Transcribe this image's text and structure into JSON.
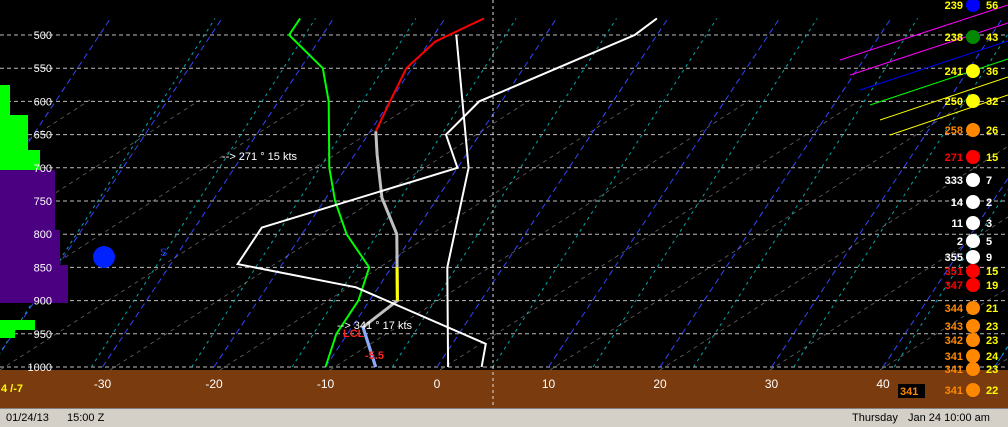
{
  "status": {
    "date": "01/24/13",
    "time": "15:00 Z",
    "valid": "Thursday",
    "valid_time": "Jan 24 10:00 am"
  },
  "left_label": "4 /-7",
  "storm_marker_label": "S",
  "bottom_right_box": "341",
  "annotations": {
    "wind_upper": "--> 271 ° 15 kts",
    "wind_lower": "--> 341 ° 17 kts",
    "lcl": "LCL",
    "sfc_value": "-5.5"
  },
  "colors": {
    "temperature": "#ff0000",
    "dewpoint": "#00ff00",
    "parcel": "#c0c0c0",
    "isobar": "#888888",
    "isotherm": "#3344ff",
    "dry_adiabat": "#aaaaaa",
    "mixing_ratio": "#00aaaa",
    "ground": "#7a3b0e",
    "status_bg": "#d4d0c8"
  },
  "chart_data": {
    "type": "line",
    "title": "",
    "xlabel": "",
    "ylabel": "",
    "x_ticks": [
      -30,
      -20,
      -10,
      0,
      10,
      20,
      30,
      40
    ],
    "y_ticks": [
      500,
      550,
      600,
      650,
      700,
      750,
      800,
      850,
      900,
      950,
      1000
    ],
    "xlim": [
      -39,
      50
    ],
    "ylim": [
      1000,
      475
    ],
    "series": [
      {
        "name": "",
        "color": "#ff0000",
        "points": [
          [
            -16.5,
            475
          ],
          [
            -19.5,
            510
          ],
          [
            -20.5,
            550
          ],
          [
            -20,
            600
          ],
          [
            -19.5,
            645
          ]
        ]
      },
      {
        "name": "",
        "color": "#c0c0c0",
        "points": [
          [
            -19.5,
            645
          ],
          [
            -18,
            680
          ],
          [
            -15,
            745
          ],
          [
            -11.5,
            800
          ],
          [
            -9.5,
            850
          ],
          [
            -7.5,
            900
          ],
          [
            -9,
            940
          ],
          [
            -5.5,
            1000
          ]
        ]
      },
      {
        "name": "",
        "color": "#00ff00",
        "points": [
          [
            -33,
            475
          ],
          [
            -33,
            500
          ],
          [
            -28,
            550
          ],
          [
            -25.5,
            600
          ],
          [
            -23.5,
            650
          ],
          [
            -21.5,
            700
          ],
          [
            -19,
            750
          ],
          [
            -16,
            800
          ],
          [
            -12,
            850
          ],
          [
            -11,
            900
          ],
          [
            -11,
            950
          ],
          [
            -10,
            1000
          ]
        ]
      },
      {
        "name": "",
        "color": "#ffffff",
        "points": [
          [
            -1,
            475
          ],
          [
            -2,
            500
          ],
          [
            -7,
            550
          ],
          [
            -12,
            600
          ],
          [
            -13,
            650
          ],
          [
            -10,
            700
          ],
          [
            -24,
            790
          ],
          [
            -24,
            845
          ],
          [
            -12,
            880
          ],
          [
            3,
            965
          ],
          [
            4,
            1000
          ]
        ]
      },
      {
        "name": "",
        "color": "#ffffff",
        "points": [
          [
            -18,
            500
          ],
          [
            -9,
            700
          ],
          [
            -5,
            850
          ],
          [
            1,
            1000
          ]
        ]
      }
    ],
    "wind_barbs": [
      {
        "label": "239",
        "value": "56",
        "color": "#0000ff"
      },
      {
        "label": "238",
        "value": "43",
        "color": "#008800"
      },
      {
        "label": "241",
        "value": "36",
        "color": "#ffff00"
      },
      {
        "label": "250",
        "value": "32",
        "color": "#ffff00"
      },
      {
        "label": "258",
        "value": "26",
        "color": "#ff8800"
      },
      {
        "label": "271",
        "value": "15",
        "color": "#ff0000"
      },
      {
        "label": "333",
        "value": "7",
        "color": "#ffffff"
      },
      {
        "label": "14",
        "value": "2",
        "color": "#ffffff"
      },
      {
        "label": "11",
        "value": "3",
        "color": "#ffffff"
      },
      {
        "label": "2",
        "value": "5",
        "color": "#ffffff"
      },
      {
        "label": "355",
        "value": "9",
        "color": "#ffffff"
      },
      {
        "label": "351",
        "value": "15",
        "color": "#ff0000"
      },
      {
        "label": "347",
        "value": "19",
        "color": "#ff0000"
      },
      {
        "label": "344",
        "value": "21",
        "color": "#ff8800"
      },
      {
        "label": "343",
        "value": "23",
        "color": "#ff8800"
      },
      {
        "label": "342",
        "value": "23",
        "color": "#ff8800"
      },
      {
        "label": "341",
        "value": "24",
        "color": "#ff8800"
      },
      {
        "label": "341",
        "value": "23",
        "color": "#ff8800"
      },
      {
        "label": "341",
        "value": "22",
        "color": "#ff8800"
      }
    ]
  }
}
